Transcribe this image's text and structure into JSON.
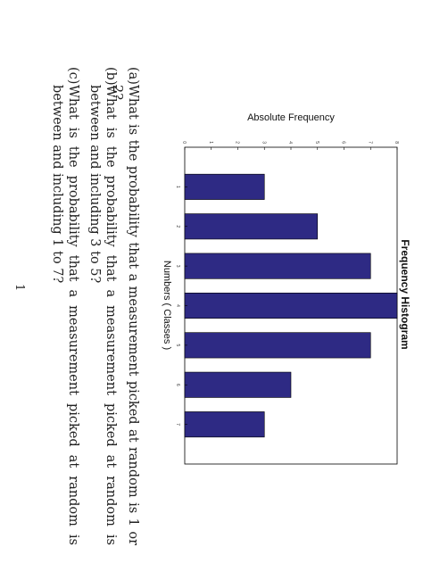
{
  "chart_data": {
    "type": "bar",
    "title": "Frequency Histogram",
    "xlabel": "Numbers ( Classes )",
    "ylabel": "Absolute Frequency",
    "categories": [
      "1",
      "2",
      "3",
      "4",
      "5",
      "6",
      "7"
    ],
    "values": [
      3,
      5,
      7,
      8,
      7,
      4,
      3
    ],
    "ylim": [
      0,
      8
    ],
    "yticks": [
      "0",
      "1",
      "2",
      "3",
      "4",
      "5",
      "6",
      "7",
      "8"
    ],
    "xticks": [
      "1",
      "2",
      "3",
      "4",
      "5",
      "6",
      "7"
    ],
    "xlim": [
      0,
      8
    ],
    "bar_color": "#2e2a84",
    "grid": false
  },
  "questions": [
    {
      "label": "(a)",
      "text": "What is the probability that a measurement picked at random is 1 or 2?"
    },
    {
      "label": "(b)",
      "text": "What is the probability that a measurement picked at random is between and including 3 to 5?"
    },
    {
      "label": "(c)",
      "text": "What is the probability that a measurement picked at random is between and including 1 to 7?"
    }
  ],
  "page_number": "1"
}
